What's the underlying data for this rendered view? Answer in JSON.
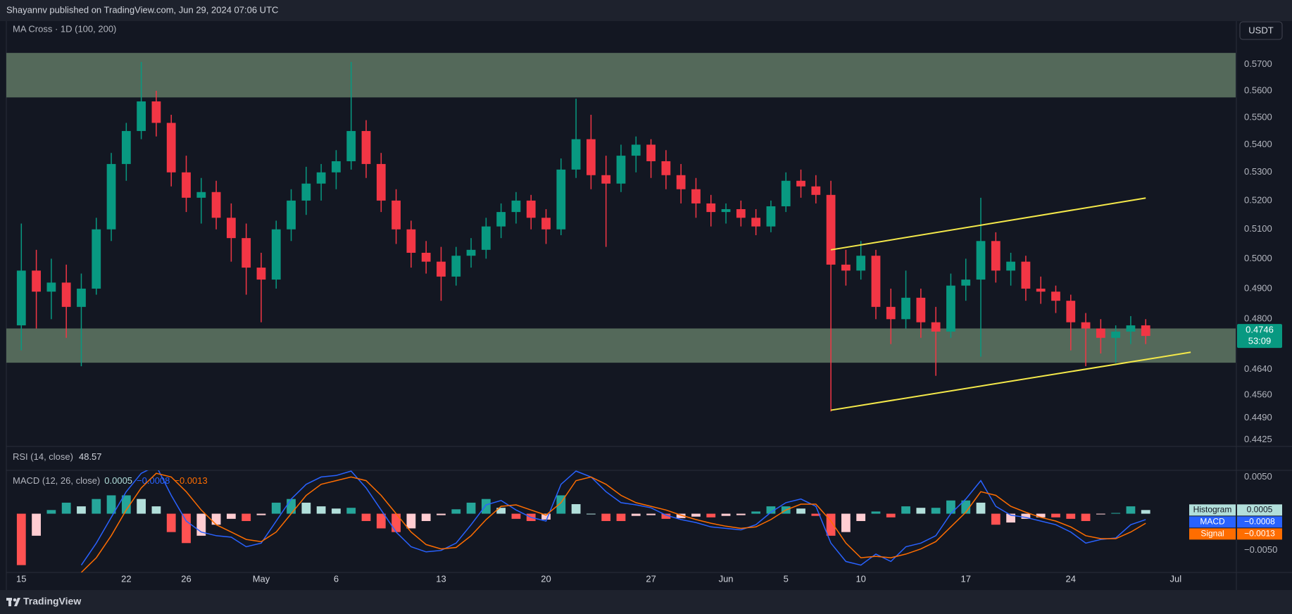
{
  "header": "Shayannv published on TradingView.com, Jun 29, 2024 07:06 UTC",
  "footer": "TradingView",
  "chart_data": [
    {
      "type": "candlestick",
      "title": "MA Cross · 1D (100, 200)",
      "currency": "USDT",
      "log_scale": true,
      "x": [
        "2024-04-15",
        "2024-04-16",
        "2024-04-17",
        "2024-04-18",
        "2024-04-19",
        "2024-04-20",
        "2024-04-21",
        "2024-04-22",
        "2024-04-23",
        "2024-04-24",
        "2024-04-25",
        "2024-04-26",
        "2024-04-27",
        "2024-04-28",
        "2024-04-29",
        "2024-04-30",
        "2024-05-01",
        "2024-05-02",
        "2024-05-03",
        "2024-05-04",
        "2024-05-05",
        "2024-05-06",
        "2024-05-07",
        "2024-05-08",
        "2024-05-09",
        "2024-05-10",
        "2024-05-11",
        "2024-05-12",
        "2024-05-13",
        "2024-05-14",
        "2024-05-15",
        "2024-05-16",
        "2024-05-17",
        "2024-05-18",
        "2024-05-19",
        "2024-05-20",
        "2024-05-21",
        "2024-05-22",
        "2024-05-23",
        "2024-05-24",
        "2024-05-25",
        "2024-05-26",
        "2024-05-27",
        "2024-05-28",
        "2024-05-29",
        "2024-05-30",
        "2024-05-31",
        "2024-06-01",
        "2024-06-02",
        "2024-06-03",
        "2024-06-04",
        "2024-06-05",
        "2024-06-06",
        "2024-06-07",
        "2024-06-08",
        "2024-06-09",
        "2024-06-10",
        "2024-06-11",
        "2024-06-12",
        "2024-06-13",
        "2024-06-14",
        "2024-06-15",
        "2024-06-16",
        "2024-06-17",
        "2024-06-18",
        "2024-06-19",
        "2024-06-20",
        "2024-06-21",
        "2024-06-22",
        "2024-06-23",
        "2024-06-24",
        "2024-06-25",
        "2024-06-26",
        "2024-06-27",
        "2024-06-28",
        "2024-06-29"
      ],
      "open": [
        0.478,
        0.496,
        0.489,
        0.492,
        0.484,
        0.49,
        0.51,
        0.533,
        0.545,
        0.556,
        0.548,
        0.53,
        0.521,
        0.523,
        0.514,
        0.507,
        0.497,
        0.493,
        0.51,
        0.52,
        0.526,
        0.53,
        0.534,
        0.545,
        0.533,
        0.52,
        0.51,
        0.502,
        0.499,
        0.494,
        0.501,
        0.503,
        0.511,
        0.516,
        0.52,
        0.514,
        0.51,
        0.531,
        0.542,
        0.529,
        0.526,
        0.536,
        0.54,
        0.534,
        0.529,
        0.524,
        0.519,
        0.516,
        0.517,
        0.514,
        0.511,
        0.518,
        0.527,
        0.525,
        0.522,
        0.498,
        0.496,
        0.501,
        0.484,
        0.48,
        0.487,
        0.479,
        0.476,
        0.491,
        0.493,
        0.506,
        0.496,
        0.499,
        0.49,
        0.489,
        0.486,
        0.479,
        0.477,
        0.474,
        0.476,
        0.478
      ],
      "high": [
        0.512,
        0.503,
        0.5,
        0.498,
        0.495,
        0.514,
        0.537,
        0.548,
        0.571,
        0.56,
        0.551,
        0.536,
        0.528,
        0.527,
        0.519,
        0.512,
        0.502,
        0.513,
        0.524,
        0.532,
        0.533,
        0.538,
        0.571,
        0.549,
        0.537,
        0.524,
        0.513,
        0.506,
        0.504,
        0.504,
        0.507,
        0.514,
        0.519,
        0.523,
        0.522,
        0.517,
        0.535,
        0.557,
        0.551,
        0.536,
        0.54,
        0.543,
        0.542,
        0.538,
        0.533,
        0.528,
        0.522,
        0.519,
        0.52,
        0.517,
        0.52,
        0.53,
        0.531,
        0.529,
        0.527,
        0.503,
        0.506,
        0.503,
        0.49,
        0.496,
        0.49,
        0.484,
        0.495,
        0.5,
        0.521,
        0.509,
        0.502,
        0.501,
        0.494,
        0.491,
        0.488,
        0.482,
        0.48,
        0.478,
        0.481,
        0.48
      ],
      "low": [
        0.47,
        0.477,
        0.48,
        0.474,
        0.465,
        0.488,
        0.506,
        0.527,
        0.542,
        0.543,
        0.525,
        0.516,
        0.512,
        0.51,
        0.499,
        0.488,
        0.479,
        0.49,
        0.506,
        0.515,
        0.52,
        0.524,
        0.531,
        0.528,
        0.516,
        0.505,
        0.497,
        0.495,
        0.486,
        0.491,
        0.497,
        0.5,
        0.507,
        0.512,
        0.51,
        0.505,
        0.508,
        0.528,
        0.524,
        0.504,
        0.523,
        0.53,
        0.528,
        0.524,
        0.519,
        0.514,
        0.511,
        0.512,
        0.511,
        0.508,
        0.509,
        0.516,
        0.521,
        0.519,
        0.451,
        0.491,
        0.493,
        0.48,
        0.472,
        0.477,
        0.474,
        0.462,
        0.474,
        0.486,
        0.468,
        0.492,
        0.491,
        0.486,
        0.485,
        0.482,
        0.47,
        0.465,
        0.469,
        0.466,
        0.472,
        0.472
      ],
      "close": [
        0.496,
        0.489,
        0.492,
        0.484,
        0.49,
        0.51,
        0.533,
        0.545,
        0.556,
        0.548,
        0.53,
        0.521,
        0.523,
        0.514,
        0.507,
        0.497,
        0.493,
        0.51,
        0.52,
        0.526,
        0.53,
        0.534,
        0.545,
        0.533,
        0.52,
        0.51,
        0.502,
        0.499,
        0.494,
        0.501,
        0.503,
        0.511,
        0.516,
        0.52,
        0.514,
        0.51,
        0.531,
        0.542,
        0.529,
        0.526,
        0.536,
        0.54,
        0.534,
        0.529,
        0.524,
        0.519,
        0.516,
        0.517,
        0.514,
        0.511,
        0.518,
        0.527,
        0.525,
        0.522,
        0.498,
        0.496,
        0.501,
        0.484,
        0.48,
        0.487,
        0.479,
        0.476,
        0.491,
        0.493,
        0.506,
        0.496,
        0.499,
        0.49,
        0.489,
        0.486,
        0.479,
        0.477,
        0.474,
        0.476,
        0.478,
        0.4746
      ],
      "up_color": "#089981",
      "down_color": "#f23645",
      "ylim": [
        0.4405,
        0.5864
      ],
      "yticks": [
        {
          "value": 0.57,
          "label": "0.5700"
        },
        {
          "value": 0.56,
          "label": "0.5600"
        },
        {
          "value": 0.55,
          "label": "0.5500"
        },
        {
          "value": 0.54,
          "label": "0.5400"
        },
        {
          "value": 0.53,
          "label": "0.5300"
        },
        {
          "value": 0.52,
          "label": "0.5200"
        },
        {
          "value": 0.51,
          "label": "0.5100"
        },
        {
          "value": 0.5,
          "label": "0.5000"
        },
        {
          "value": 0.49,
          "label": "0.4900"
        },
        {
          "value": 0.48,
          "label": "0.4800"
        },
        {
          "value": 0.464,
          "label": "0.4640"
        },
        {
          "value": 0.456,
          "label": "0.4560"
        },
        {
          "value": 0.449,
          "label": "0.4490"
        },
        {
          "value": 0.4425,
          "label": "0.4425"
        }
      ],
      "xlim": [
        "2024-04-14",
        "2024-07-05"
      ],
      "xticks": [
        {
          "value": "2024-04-15",
          "label": "15"
        },
        {
          "value": "2024-04-22",
          "label": "22"
        },
        {
          "value": "2024-04-26",
          "label": "26"
        },
        {
          "value": "2024-05-01",
          "label": "May"
        },
        {
          "value": "2024-05-06",
          "label": "6"
        },
        {
          "value": "2024-05-13",
          "label": "13"
        },
        {
          "value": "2024-05-20",
          "label": "20"
        },
        {
          "value": "2024-05-27",
          "label": "27"
        },
        {
          "value": "2024-06-01",
          "label": "Jun"
        },
        {
          "value": "2024-06-05",
          "label": "5"
        },
        {
          "value": "2024-06-10",
          "label": "10"
        },
        {
          "value": "2024-06-17",
          "label": "17"
        },
        {
          "value": "2024-06-24",
          "label": "24"
        },
        {
          "value": "2024-07-01",
          "label": "Jul"
        }
      ],
      "zones": [
        {
          "from": 0.5575,
          "to": 0.5745,
          "color": "#54695a"
        },
        {
          "from": 0.4661,
          "to": 0.477,
          "color": "#54695a"
        }
      ],
      "drawings": [
        {
          "color": "#f5e94a",
          "points": [
            [
              "2024-06-08",
              0.503
            ],
            [
              "2024-06-29",
              0.5209
            ]
          ]
        },
        {
          "color": "#f5e94a",
          "points": [
            [
              "2024-06-08",
              0.4514
            ],
            [
              "2024-07-02",
              0.4694
            ]
          ]
        }
      ],
      "last_price_color": "#089981",
      "countdown": "53:09"
    },
    {
      "type": "label",
      "title": "RSI (14, close)",
      "value": 48.57
    },
    {
      "type": "macd",
      "title": "MACD (12, 26, close)",
      "ylim": [
        -0.008,
        0.0059
      ],
      "yticks": [
        {
          "value": 0.005,
          "label": "0.0050"
        },
        {
          "value": -0.005,
          "label": "−0.0050"
        }
      ],
      "series": [
        {
          "name": "Histogram",
          "color": "#b2dfdb",
          "colors": {
            "up_rising": "#26a69a",
            "up_falling": "#b2dfdb",
            "down_falling": "#ff5252",
            "down_rising": "#ffcdd2"
          },
          "values": [
            -0.007,
            -0.003,
            0.0005,
            0.0015,
            0.001,
            0.002,
            0.0025,
            0.0025,
            0.002,
            0.001,
            -0.0025,
            -0.004,
            -0.003,
            -0.0015,
            -0.0007,
            -0.001,
            -0.0002,
            0.0015,
            0.002,
            0.0015,
            0.001,
            0.0007,
            0.0008,
            -0.001,
            -0.002,
            -0.0025,
            -0.002,
            -0.001,
            -0.0002,
            0.0006,
            0.0015,
            0.002,
            0.0008,
            -0.0007,
            -0.001,
            -0.0008,
            0.0025,
            0.0013,
            0.0,
            -0.001,
            -0.001,
            -0.0003,
            -0.0002,
            -0.0007,
            -0.0006,
            -0.0004,
            -0.0005,
            -0.0003,
            -0.0002,
            0.0003,
            0.001,
            0.001,
            0.0007,
            -0.0003,
            -0.003,
            -0.0025,
            -0.001,
            0.0003,
            -0.0005,
            0.001,
            0.0008,
            0.0008,
            0.0018,
            0.0018,
            0.0015,
            -0.0015,
            -0.0012,
            -0.0007,
            -0.0005,
            -0.0005,
            -0.0007,
            -0.001,
            -0.0001,
            0.0001,
            0.001,
            0.0005
          ]
        },
        {
          "name": "MACD",
          "color": "#2962ff",
          "values": [
            null,
            null,
            null,
            null,
            -0.007,
            -0.004,
            -0.0005,
            0.003,
            0.0055,
            0.0065,
            0.0025,
            -0.001,
            -0.0025,
            -0.003,
            -0.0032,
            -0.0045,
            -0.004,
            -0.001,
            0.002,
            0.004,
            0.005,
            0.0052,
            0.0058,
            0.0035,
            0.0005,
            -0.0025,
            -0.0045,
            -0.0052,
            -0.005,
            -0.004,
            -0.0015,
            0.0012,
            0.0018,
            0.0005,
            -0.0005,
            -0.001,
            0.004,
            0.0058,
            0.005,
            0.003,
            0.0015,
            0.0012,
            0.0008,
            -0.0002,
            -0.0008,
            -0.0012,
            -0.0018,
            -0.002,
            -0.0022,
            -0.0015,
            0.0002,
            0.0015,
            0.002,
            0.001,
            -0.004,
            -0.0065,
            -0.007,
            -0.0055,
            -0.0065,
            -0.0045,
            -0.004,
            -0.003,
            0.0,
            0.002,
            0.0045,
            0.001,
            -0.0002,
            -0.0005,
            -0.001,
            -0.0015,
            -0.0025,
            -0.004,
            -0.0035,
            -0.0033,
            -0.0015,
            -0.0008
          ]
        },
        {
          "name": "Signal",
          "color": "#ff6d00",
          "values": [
            null,
            null,
            null,
            null,
            -0.008,
            -0.006,
            -0.003,
            0.0005,
            0.0035,
            0.0055,
            0.005,
            0.003,
            0.0005,
            -0.0015,
            -0.0025,
            -0.0035,
            -0.0038,
            -0.0025,
            0.0,
            0.0025,
            0.004,
            0.0045,
            0.005,
            0.0045,
            0.0025,
            0.0,
            -0.0025,
            -0.0042,
            -0.0048,
            -0.0046,
            -0.003,
            -0.0008,
            0.001,
            0.0012,
            0.0005,
            -0.0002,
            0.0015,
            0.0045,
            0.005,
            0.004,
            0.0025,
            0.0015,
            0.001,
            0.0005,
            -0.0002,
            -0.0008,
            -0.0013,
            -0.0017,
            -0.002,
            -0.0018,
            -0.0008,
            0.0005,
            0.0013,
            0.0013,
            -0.001,
            -0.004,
            -0.006,
            -0.0058,
            -0.006,
            -0.0055,
            -0.0048,
            -0.0038,
            -0.0018,
            0.0002,
            0.003,
            0.0025,
            0.001,
            0.0002,
            -0.0005,
            -0.001,
            -0.0018,
            -0.003,
            -0.0034,
            -0.0034,
            -0.0025,
            -0.0013
          ]
        }
      ],
      "last_values": [
        0.0005,
        {
          "value": -0.0008,
          "label": "−0.0008"
        },
        {
          "value": -0.0013,
          "label": "−0.0013"
        }
      ]
    }
  ]
}
